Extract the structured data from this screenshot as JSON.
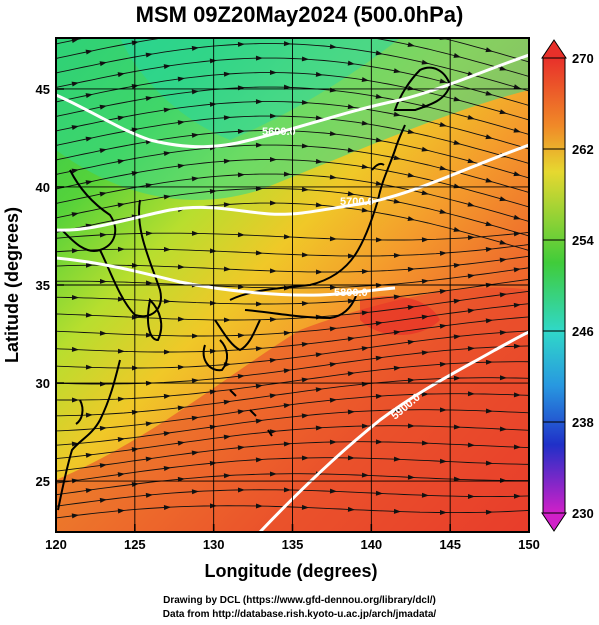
{
  "title": "MSM 09Z20May2024 (500.0hPa)",
  "map": {
    "x_label": "Longitude (degrees)",
    "y_label": "Latitude  (degrees)",
    "lon_range": [
      120,
      150
    ],
    "lat_range": [
      22.4,
      47.6
    ],
    "lon_ticks": [
      "120",
      "125",
      "130",
      "135",
      "140",
      "145",
      "150"
    ],
    "lat_ticks": [
      "25",
      "30",
      "35",
      "40",
      "45"
    ],
    "grid": true
  },
  "contours": [
    {
      "label": "5600.0"
    },
    {
      "label": "5700.0"
    },
    {
      "label": "5800.0"
    },
    {
      "label": "5900.0"
    }
  ],
  "colorbar": {
    "min": 230,
    "max": 270,
    "ticks": [
      "270",
      "262",
      "254",
      "246",
      "238",
      "230"
    ]
  },
  "footer": {
    "line1": "Drawing by DCL (https://www.gfd-dennou.org/library/dcl/)",
    "line2": "Data from http://database.rish.kyoto-u.ac.jp/arch/jmadata/"
  },
  "colors": {
    "warm": "#e8302a",
    "orange": "#f08a28",
    "yellow": "#e6d830",
    "green": "#40cc3a",
    "cyan": "#30d8c8",
    "blue": "#2030c8",
    "magenta": "#d020c8"
  }
}
